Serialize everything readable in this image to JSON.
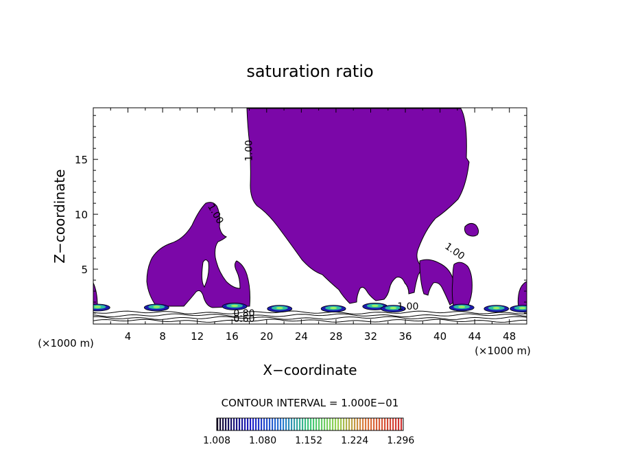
{
  "chart_data": {
    "type": "contour",
    "title": "saturation ratio",
    "xlabel": "X−coordinate",
    "ylabel": "Z−coordinate",
    "x_unit_left": "(×1000 m)",
    "x_unit_right": "(×1000 m)",
    "xlim": [
      0,
      50
    ],
    "ylim": [
      0,
      19.7
    ],
    "x_ticks": [
      4,
      8,
      12,
      16,
      20,
      24,
      28,
      32,
      36,
      40,
      44,
      48
    ],
    "y_ticks": [
      5,
      10,
      15
    ],
    "contour_interval_text": "CONTOUR INTERVAL = 1.000E−01",
    "contour_labels": [
      {
        "text": "1.00",
        "x": 18.3,
        "z": 15.8,
        "rotate": -90
      },
      {
        "text": "1.00",
        "x": 13.8,
        "z": 9.9,
        "rotate": 60
      },
      {
        "text": "1.00",
        "x": 41.5,
        "z": 6.4,
        "rotate": 35
      },
      {
        "text": "1.00",
        "x": 36.3,
        "z": 1.3,
        "rotate": 0
      },
      {
        "text": "0.80",
        "x": 17.4,
        "z": 0.7,
        "rotate": 0
      },
      {
        "text": "0.60",
        "x": 17.4,
        "z": 0.2,
        "rotate": 0
      }
    ],
    "colorbar": {
      "labels": [
        "1.008",
        "1.080",
        "1.152",
        "1.224",
        "1.296"
      ],
      "range": [
        1.008,
        1.3
      ]
    },
    "colors": {
      "main_fill": "#7b07a8",
      "outline": "#000000",
      "background": "#ffffff"
    }
  }
}
